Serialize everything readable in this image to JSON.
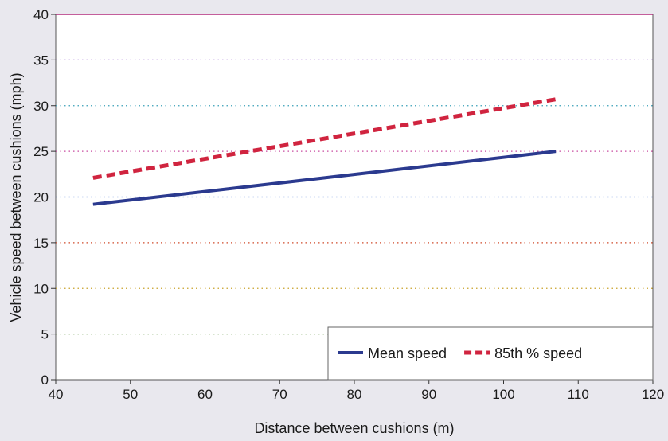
{
  "chart_data": {
    "type": "line",
    "xlabel": "Distance between cushions (m)",
    "ylabel": "Vehicle speed between cushions (mph)",
    "xlim": [
      40,
      120
    ],
    "ylim": [
      0,
      40
    ],
    "xticks": [
      40,
      50,
      60,
      70,
      80,
      90,
      100,
      110,
      120
    ],
    "yticks": [
      0,
      5,
      10,
      15,
      20,
      25,
      30,
      35,
      40
    ],
    "grid": "horizontal-dotted",
    "legend_position": "bottom-right",
    "series": [
      {
        "name": "Mean speed",
        "color": "#2b3a8f",
        "style": "solid",
        "x": [
          45,
          107
        ],
        "y": [
          19.2,
          25.0
        ]
      },
      {
        "name": "85th % speed",
        "color": "#d0243f",
        "style": "dashed",
        "x": [
          45,
          107
        ],
        "y": [
          22.1,
          30.7
        ]
      }
    ],
    "gridline_colors": [
      "#8a8a8a",
      "#5b8f3a",
      "#c9a22a",
      "#d04a2a",
      "#3a6ad0",
      "#c84aa0",
      "#3aa0b8",
      "#9a6ad0"
    ]
  }
}
